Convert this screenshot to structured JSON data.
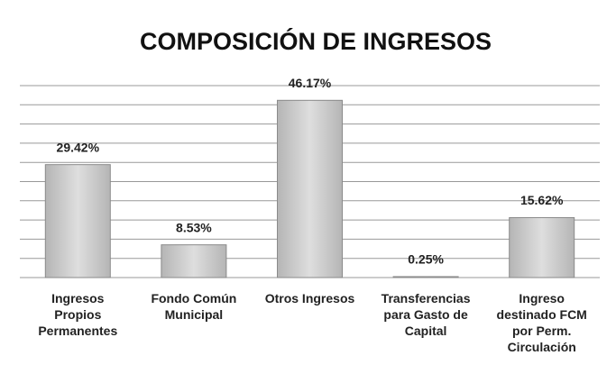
{
  "chart_data": {
    "type": "bar",
    "title": "COMPOSICIÓN DE INGRESOS",
    "categories": [
      "Ingresos Propios Permanentes",
      "Fondo Común Municipal",
      "Otros Ingresos",
      "Transferencias para Gasto de Capital",
      "Ingreso destinado FCM por Perm. Circulación"
    ],
    "values": [
      29.42,
      8.53,
      46.17,
      0.25,
      15.62
    ],
    "value_labels": [
      "29.42%",
      "8.53%",
      "46.17%",
      "0.25%",
      "15.62%"
    ],
    "color": "#c9c9c9",
    "ylim": [
      0,
      50
    ],
    "yticks": [
      0,
      5,
      10,
      15,
      20,
      25,
      30,
      35,
      40,
      45,
      50
    ],
    "grid": true
  }
}
